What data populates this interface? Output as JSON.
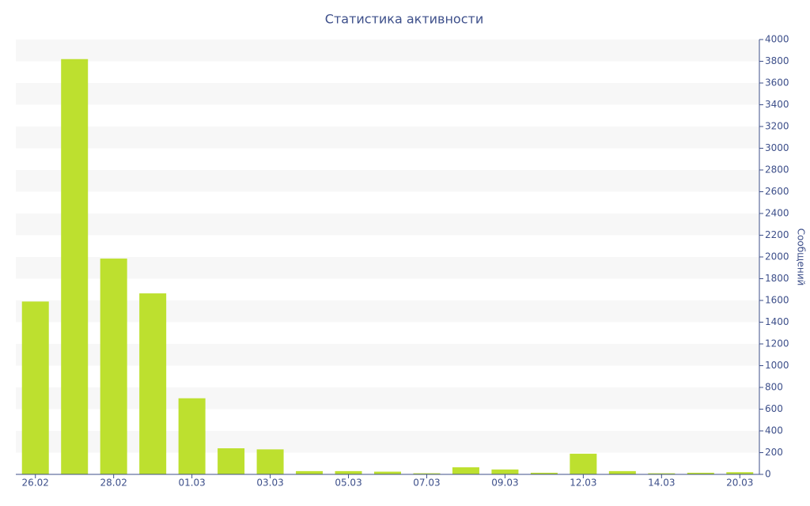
{
  "chart_data": {
    "type": "bar",
    "title": "Статистика активности",
    "y_axis_label": "Сообщений",
    "categories": [
      "26.02",
      null,
      "28.02",
      null,
      "01.03",
      null,
      "03.03",
      null,
      "05.03",
      null,
      "07.03",
      null,
      "09.03",
      null,
      "12.03",
      null,
      "14.03",
      null,
      "20.03"
    ],
    "values": [
      1590,
      3820,
      1985,
      1665,
      700,
      240,
      230,
      30,
      30,
      25,
      10,
      65,
      45,
      15,
      190,
      30,
      10,
      15,
      20
    ],
    "color": "#bde02f",
    "ylim": [
      0,
      4000
    ],
    "yticks": [
      0,
      200,
      400,
      600,
      800,
      1000,
      1200,
      1400,
      1600,
      1800,
      2000,
      2200,
      2400,
      2600,
      2800,
      3000,
      3200,
      3400,
      3600,
      3800,
      4000
    ],
    "grid": true
  }
}
